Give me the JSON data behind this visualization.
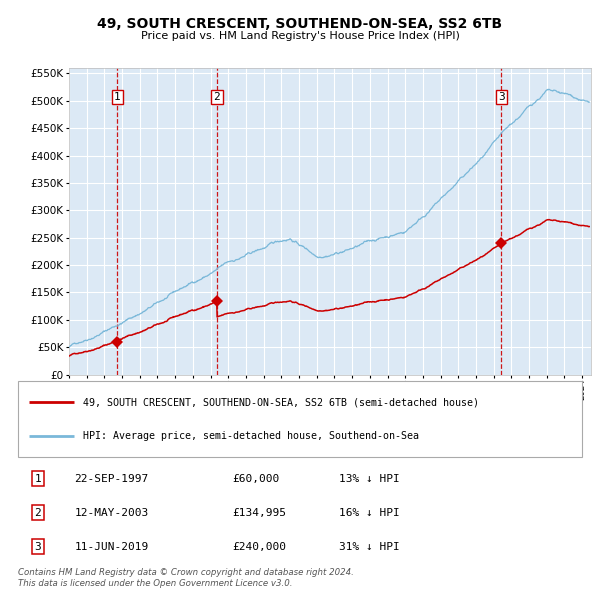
{
  "title": "49, SOUTH CRESCENT, SOUTHEND-ON-SEA, SS2 6TB",
  "subtitle": "Price paid vs. HM Land Registry's House Price Index (HPI)",
  "background_color": "#dce9f5",
  "plot_bg_color": "#dce9f5",
  "hpi_line_color": "#7ab8d9",
  "price_line_color": "#cc0000",
  "marker_color": "#cc0000",
  "vline_color": "#cc0000",
  "ylim": [
    0,
    560000
  ],
  "yticks": [
    0,
    50000,
    100000,
    150000,
    200000,
    250000,
    300000,
    350000,
    400000,
    450000,
    500000,
    550000
  ],
  "xlim_start": 1995.0,
  "xlim_end": 2024.5,
  "sale_dates": [
    1997.72,
    2003.36,
    2019.44
  ],
  "sale_prices": [
    60000,
    134995,
    240000
  ],
  "sale_labels": [
    "1",
    "2",
    "3"
  ],
  "sale_info": [
    {
      "label": "1",
      "date": "22-SEP-1997",
      "price": "£60,000",
      "pct": "13% ↓ HPI"
    },
    {
      "label": "2",
      "date": "12-MAY-2003",
      "price": "£134,995",
      "pct": "16% ↓ HPI"
    },
    {
      "label": "3",
      "date": "11-JUN-2019",
      "price": "£240,000",
      "pct": "31% ↓ HPI"
    }
  ],
  "legend_line1": "49, SOUTH CRESCENT, SOUTHEND-ON-SEA, SS2 6TB (semi-detached house)",
  "legend_line2": "HPI: Average price, semi-detached house, Southend-on-Sea",
  "footer1": "Contains HM Land Registry data © Crown copyright and database right 2024.",
  "footer2": "This data is licensed under the Open Government Licence v3.0."
}
